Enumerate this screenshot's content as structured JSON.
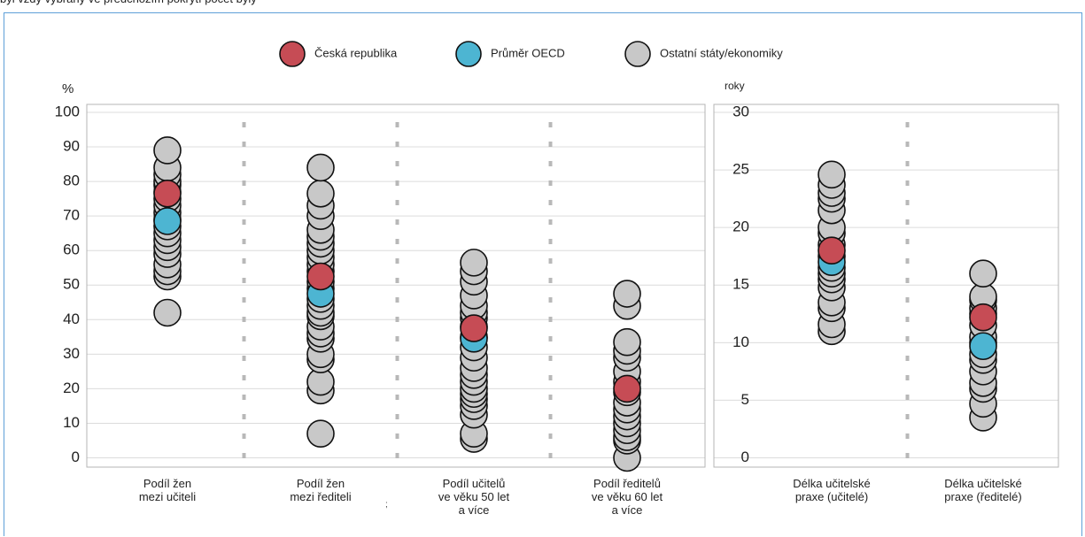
{
  "header": {
    "cut_text": "byl vždy vybrány ve předchozím pokrytí počet byly"
  },
  "legend": [
    {
      "label": "Česká republika",
      "color": "#c64c55"
    },
    {
      "label": "Průměr OECD",
      "color": "#4db5d2"
    },
    {
      "label": "Ostatní státy/ekonomiky",
      "color": "#c8c8c8"
    }
  ],
  "stray_mark": ";",
  "chart_data": [
    {
      "type": "scatter",
      "ylabel": "%",
      "ylim": [
        0,
        100
      ],
      "yticks": [
        0,
        10,
        20,
        30,
        40,
        50,
        60,
        70,
        80,
        90,
        100
      ],
      "grid": true,
      "categories": [
        [
          "Podíl žen",
          "mezi učiteli"
        ],
        [
          "Podíl žen",
          "mezi řediteli"
        ],
        [
          "Podíl učitelů",
          "ve věku 50 let",
          "a více"
        ],
        [
          "Podíl ředitelů",
          "ve věku 60 let",
          "a více"
        ]
      ],
      "series": [
        {
          "name": "Ostatní státy/ekonomiky",
          "values": [
            [
              42,
              52.5,
              54,
              56,
              59,
              61,
              63,
              65,
              67,
              69,
              71,
              73,
              75,
              77,
              79,
              80,
              82,
              84,
              89
            ],
            [
              7,
              19.5,
              22,
              28.5,
              30,
              34.5,
              36,
              38,
              41,
              42,
              44,
              46,
              49,
              51,
              54,
              56,
              58,
              60,
              62,
              64,
              66,
              70,
              73,
              76.5,
              84
            ],
            [
              5.5,
              7,
              12.5,
              15,
              17,
              18.5,
              20,
              22,
              24,
              26,
              29,
              32,
              35,
              38,
              40.5,
              42,
              44,
              47,
              51,
              54,
              56.5
            ],
            [
              0,
              5,
              6,
              8,
              10,
              12,
              14,
              16,
              19,
              22,
              25,
              29,
              31,
              33.5,
              44,
              47.5
            ]
          ]
        },
        {
          "name": "Česká republika",
          "values": [
            76.5,
            52.5,
            37.5,
            20
          ]
        },
        {
          "name": "Průměr OECD",
          "values": [
            68.5,
            47.5,
            34.5,
            null
          ]
        }
      ]
    },
    {
      "type": "scatter",
      "ylabel": "roky",
      "ylim": [
        0,
        30
      ],
      "yticks": [
        0,
        5,
        10,
        15,
        20,
        25,
        30
      ],
      "grid": true,
      "categories": [
        [
          "Délka učitelské",
          "praxe (učitelé)"
        ],
        [
          "Délka učitelské",
          "praxe (ředitelé)"
        ]
      ],
      "series": [
        {
          "name": "Ostatní státy/ekonomiky",
          "values": [
            [
              11,
              11.6,
              13,
              13.5,
              14.8,
              15.5,
              16,
              16.5,
              17.5,
              18.5,
              19.5,
              20,
              21.5,
              22.5,
              23,
              23.7,
              24.6
            ],
            [
              3.5,
              4.7,
              6,
              6.5,
              7.5,
              8.5,
              9,
              10,
              10.5,
              11.5,
              12.5,
              13,
              13.7,
              14,
              16
            ]
          ]
        },
        {
          "name": "Česká republika",
          "values": [
            18,
            12.2
          ]
        },
        {
          "name": "Průměr OECD",
          "values": [
            17,
            9.7
          ]
        }
      ]
    }
  ]
}
